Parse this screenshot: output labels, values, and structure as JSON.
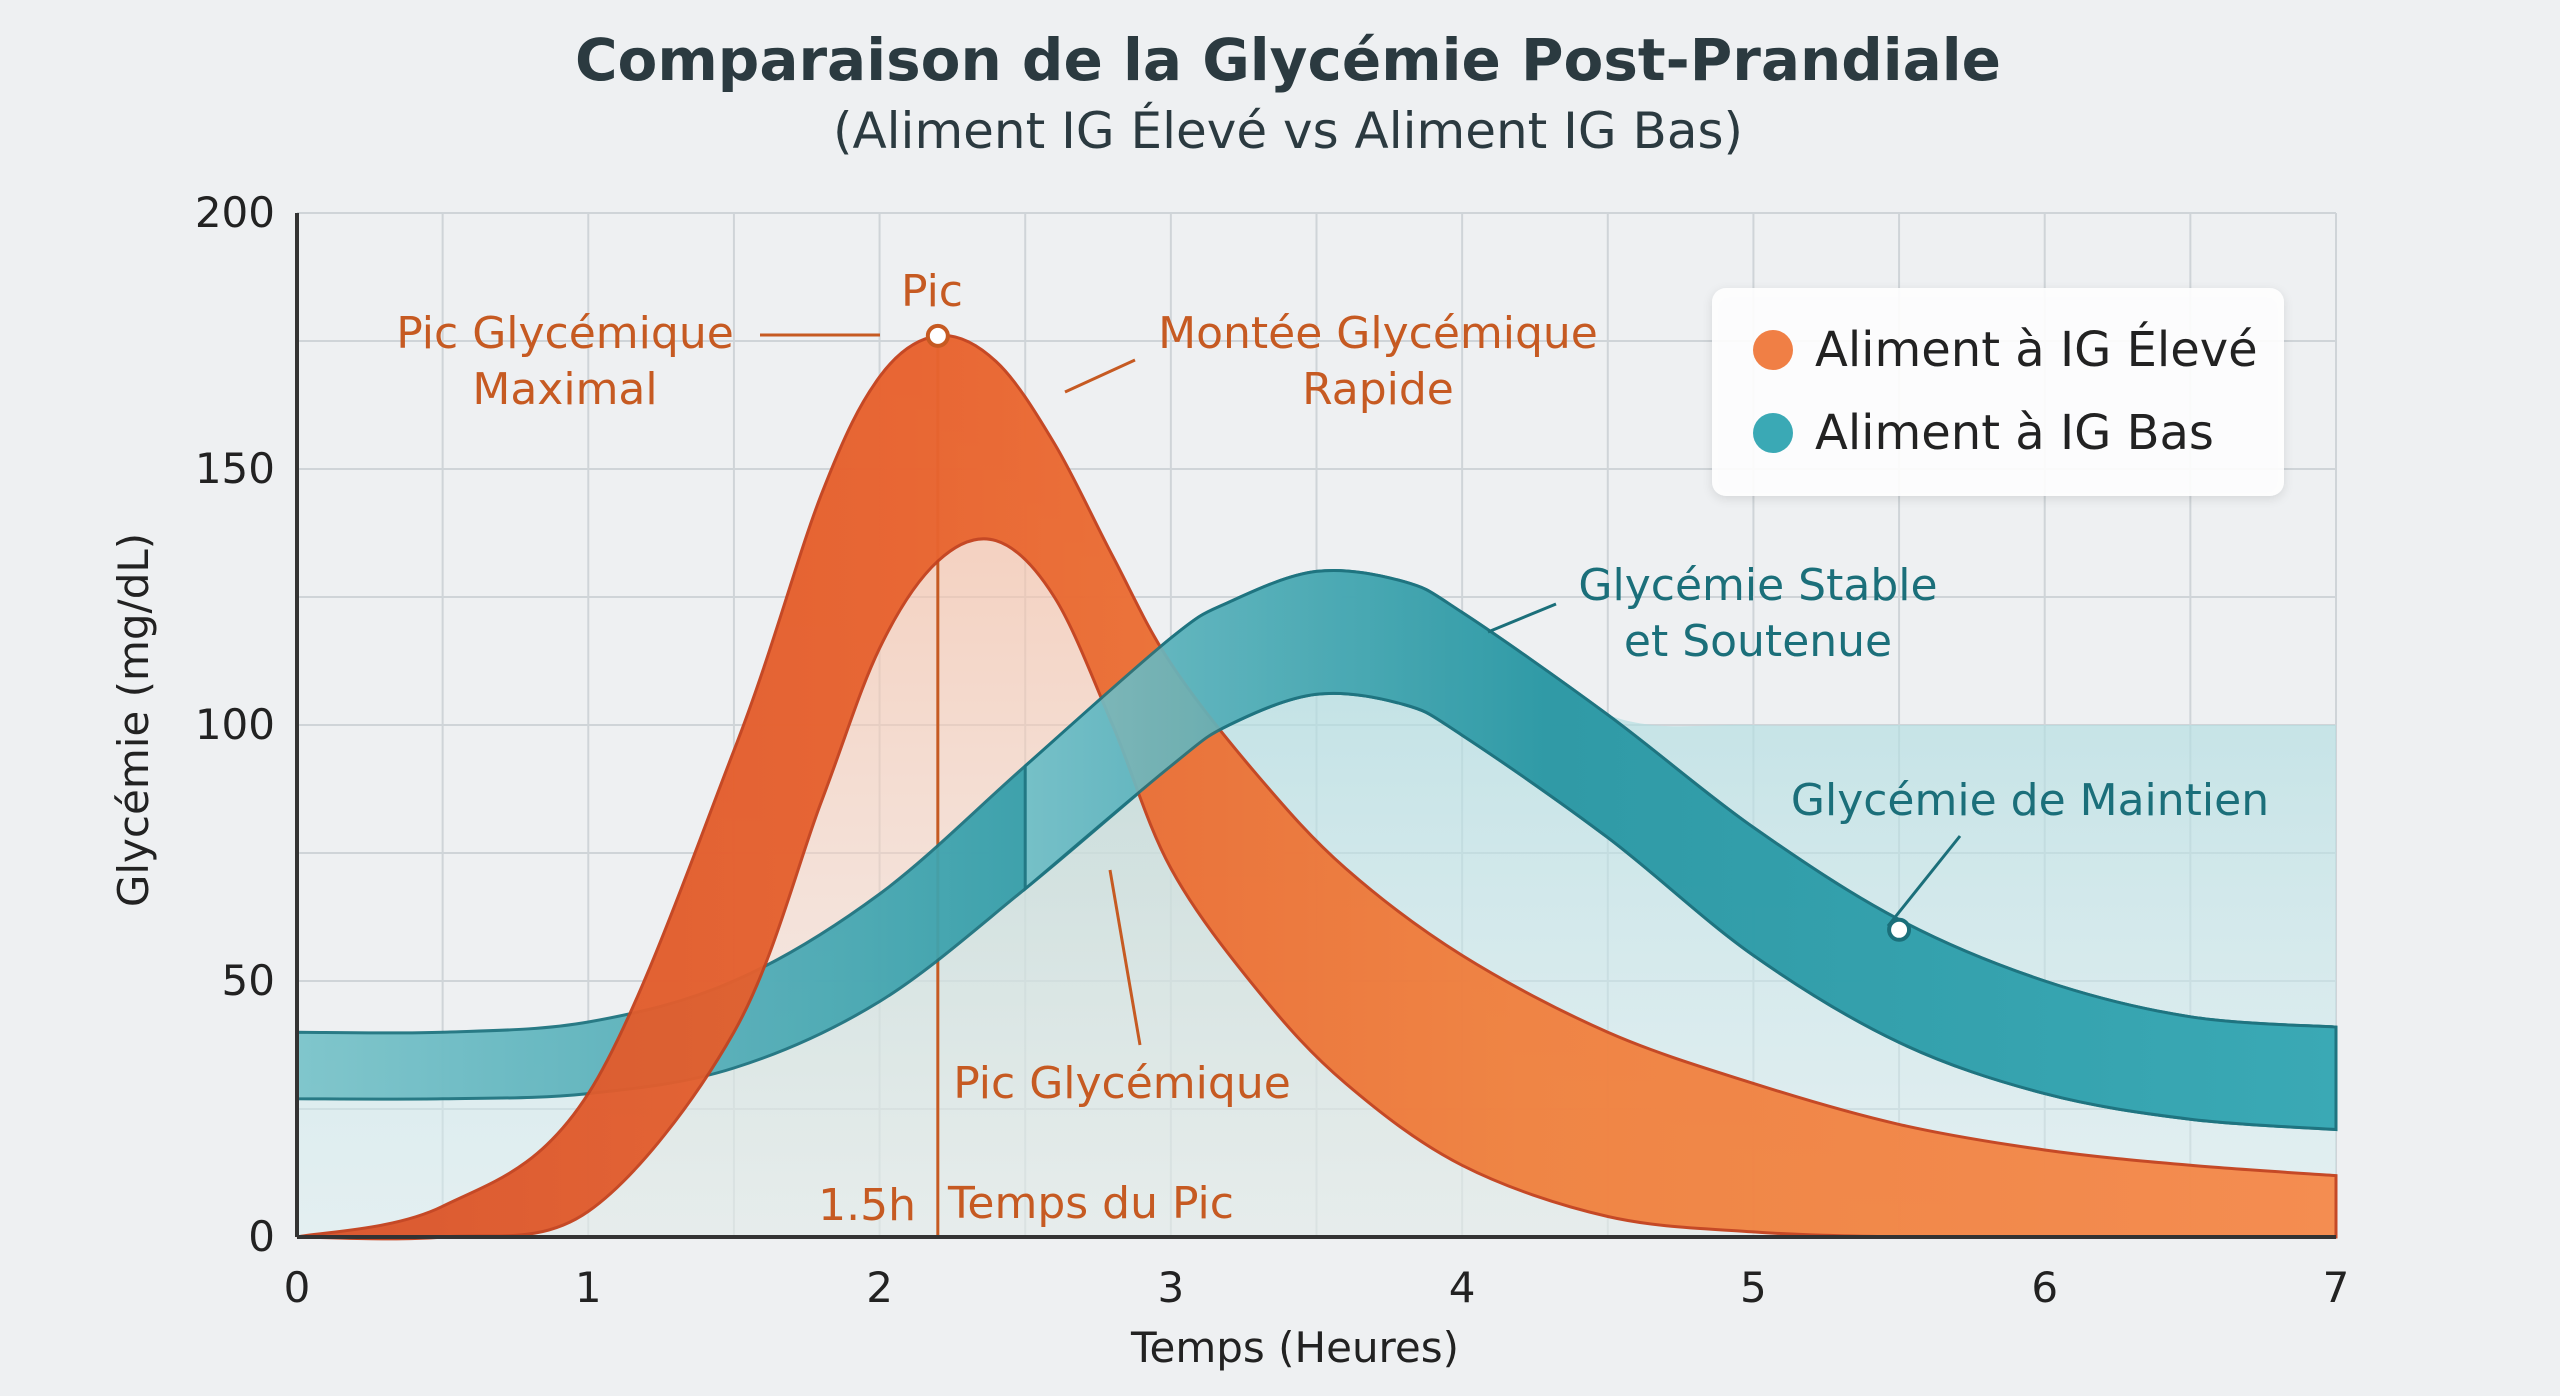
{
  "chart_data": {
    "type": "area",
    "title": "Comparaison de la Glycémie Post-Prandiale",
    "subtitle": "(Aliment IG Élevé vs Aliment IG Bas)",
    "xlabel": "Temps (Heures)",
    "ylabel": "Glycémie (mg/dL)",
    "xlim": [
      0,
      7
    ],
    "ylim": [
      0,
      200
    ],
    "x_ticks": [
      "0",
      "1",
      "2",
      "3",
      "4",
      "5",
      "6",
      "7"
    ],
    "y_ticks": [
      "0",
      "50",
      "100",
      "150",
      "200"
    ],
    "grid": true,
    "legend_position": "top-right",
    "series": [
      {
        "name": "Aliment à IG Élevé",
        "color": "#f07f45",
        "x": [
          0,
          0.5,
          1,
          1.5,
          1.8,
          2,
          2.2,
          2.4,
          2.6,
          2.8,
          3,
          3.3,
          3.6,
          4,
          4.5,
          5,
          5.5,
          6,
          6.5,
          7
        ],
        "y_upper": [
          0,
          6,
          28,
          95,
          145,
          168,
          176,
          171,
          155,
          133,
          112,
          90,
          72,
          55,
          40,
          30,
          22,
          17,
          14,
          12
        ],
        "y_lower": [
          0,
          0,
          5,
          40,
          85,
          115,
          132,
          136,
          125,
          100,
          72,
          48,
          30,
          14,
          4,
          1,
          0,
          0,
          0,
          0
        ]
      },
      {
        "name": "Aliment à IG Bas",
        "color": "#3aa9b5",
        "x": [
          0,
          0.5,
          1,
          1.5,
          2,
          2.5,
          3,
          3.2,
          3.5,
          3.8,
          4,
          4.5,
          5,
          5.5,
          6,
          6.5,
          7
        ],
        "y_upper": [
          40,
          40,
          42,
          50,
          67,
          92,
          117,
          124,
          130,
          128,
          122,
          102,
          80,
          62,
          50,
          43,
          41
        ],
        "y_lower": [
          27,
          27,
          28,
          33,
          46,
          68,
          92,
          100,
          106,
          104,
          98,
          78,
          55,
          38,
          28,
          23,
          21
        ],
        "plateau_y": 100
      }
    ],
    "annotations": [
      {
        "text": "Pic",
        "color": "#c65a22"
      },
      {
        "text": "Pic Glycémique Maximal",
        "color": "#c65a22"
      },
      {
        "text": "Montée Glycémique Rapide",
        "color": "#c65a22"
      },
      {
        "text": "Pic Glycémique",
        "color": "#c65a22"
      },
      {
        "text": "1.5h",
        "color": "#c65a22"
      },
      {
        "text": "Temps du Pic",
        "color": "#c65a22"
      },
      {
        "text": "Glycémie Stable et Soutenue",
        "color": "#1b6f7a"
      },
      {
        "text": "Glycémie de Maintien",
        "color": "#1b6f7a"
      }
    ],
    "peak_marker": {
      "x": 2.2,
      "y": 176
    },
    "maintenance_marker": {
      "x": 5.5,
      "y": 60
    }
  },
  "labels": {
    "ann_pic": "Pic",
    "ann_max_line1": "Pic Glycémique",
    "ann_max_line2": "Maximal",
    "ann_rapid_line1": "Montée Glycémique",
    "ann_rapid_line2": "Rapide",
    "ann_stable_line1": "Glycémie Stable",
    "ann_stable_line2": "et Soutenue",
    "ann_maintien": "Glycémie de Maintien",
    "ann_pic_glycemique": "Pic Glycémique",
    "ann_peak_time": "1.5h",
    "ann_temps_pic": "Temps du Pic"
  }
}
